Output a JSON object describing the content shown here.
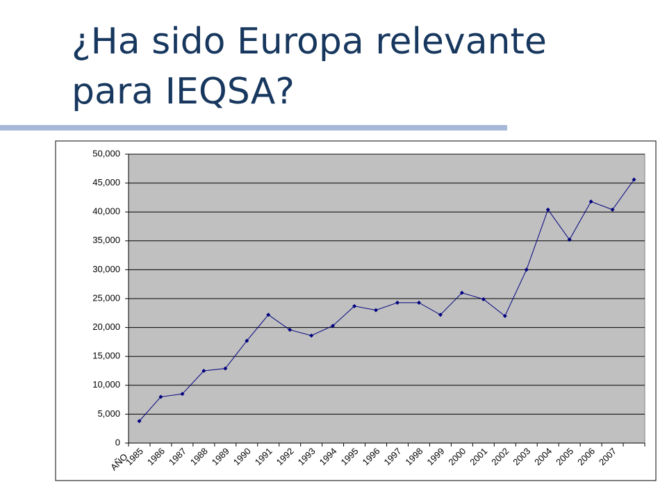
{
  "chart_data": {
    "type": "line",
    "title": "¿Ha sido Europa relevante para IEQSA?",
    "x_label": "AÑO",
    "categories": [
      "1985",
      "1986",
      "1987",
      "1988",
      "1989",
      "1990",
      "1991",
      "1992",
      "1993",
      "1994",
      "1995",
      "1996",
      "1997",
      "1998",
      "1999",
      "2000",
      "2001",
      "2002",
      "2003",
      "2004",
      "2005",
      "2006",
      "2007",
      null
    ],
    "values": [
      3800,
      8000,
      8500,
      12500,
      12900,
      17700,
      22200,
      19600,
      18600,
      20300,
      23700,
      23000,
      24300,
      24300,
      22200,
      26000,
      24900,
      22000,
      30000,
      40400,
      35200,
      41800,
      40400,
      45600
    ],
    "color": "#000080",
    "ylim": [
      0,
      50000
    ],
    "yticks": [
      0,
      {
        "value": 5000,
        "label": "5,000"
      },
      {
        "value": 10000,
        "label": "10,000"
      },
      {
        "value": 15000,
        "label": "15,000"
      },
      {
        "value": 20000,
        "label": "20,000"
      },
      {
        "value": 25000,
        "label": "25,000"
      },
      {
        "value": 30000,
        "label": "30,000"
      },
      {
        "value": 35000,
        "label": "35,000"
      },
      {
        "value": 40000,
        "label": "40,000"
      },
      {
        "value": 45000,
        "label": "45,000"
      },
      {
        "value": 50000,
        "label": "50,000"
      }
    ],
    "grid": true
  }
}
